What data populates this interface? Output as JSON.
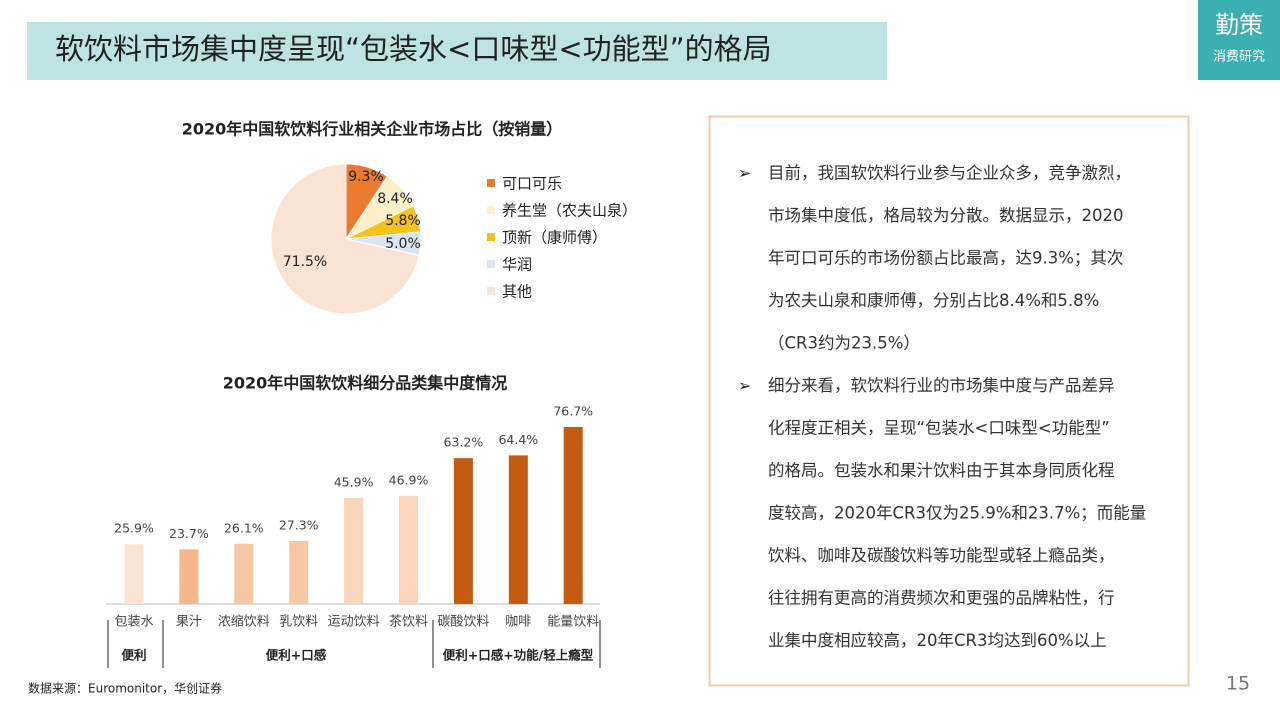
{
  "title": "软饮料市场集中度呈现“包装水<口味型<功能型”的格局",
  "logo": {
    "name": "勤策",
    "sub": "消费研究"
  },
  "chart_data": [
    {
      "type": "pie",
      "title": "2020年中国软饮料行业相关企业市场占比（按销量）",
      "categories": [
        "可口可乐",
        "养生堂（农夫山泉）",
        "顶新（康师傅）",
        "华润",
        "其他"
      ],
      "values": [
        9.3,
        8.4,
        5.8,
        5.0,
        71.5
      ],
      "value_labels": [
        "9.3%",
        "8.4%",
        "5.8%",
        "5.0%",
        "71.5%"
      ],
      "colors": [
        "#e97a2e",
        "#fdf0c8",
        "#f7c21a",
        "#dde4f1",
        "#fbe3d3"
      ]
    },
    {
      "type": "bar",
      "title": "2020年中国软饮料细分品类集中度情况",
      "categories": [
        "包装水",
        "果汁",
        "浓缩饮料",
        "乳饮料",
        "运动饮料",
        "茶饮料",
        "碳酸饮料",
        "咖啡",
        "能量饮料"
      ],
      "values": [
        25.9,
        23.7,
        26.1,
        27.3,
        45.9,
        46.9,
        63.2,
        64.4,
        76.7
      ],
      "value_labels": [
        "25.9%",
        "23.7%",
        "26.1%",
        "27.3%",
        "45.9%",
        "46.9%",
        "63.2%",
        "64.4%",
        "76.7%"
      ],
      "colors": [
        "#fbe3d3",
        "#f4b68b",
        "#f6c7a5",
        "#f6c7a5",
        "#f8d5bb",
        "#f8d5bb",
        "#c55a11",
        "#c55a11",
        "#c55a11"
      ],
      "category_groups": [
        "便利",
        "便利+口感",
        "便利+口感+功能/轻上瘾型"
      ]
    }
  ],
  "bullets": [
    [
      "目前，我国软饮料行业参与企业众多，竞争激烈，",
      "市场集中度低，格局较为分散。数据显示，2020",
      "年可口可乐的市场份额占比最高，达9.3%；其次",
      "为农夫山泉和康师傅，分别占比8.4%和5.8%",
      "（CR3约为23.5%）"
    ],
    [
      "细分来看，软饮料行业的市场集中度与产品差异",
      "化程度正相关，呈现“包装水<口味型<功能型”",
      "的格局。包装水和果汁饮料由于其本身同质化程",
      "度较高，2020年CR3仅为25.9%和23.7%；而能量",
      "饮料、咖啡及碳酸饮料等功能型或轻上瘾品类，",
      "往往拥有更高的消费频次和更强的品牌粘性，行",
      "业集中度相应较高，20年CR3均达到60%以上"
    ]
  ],
  "source": "数据来源：Euromonitor，华创证券",
  "page": "15"
}
